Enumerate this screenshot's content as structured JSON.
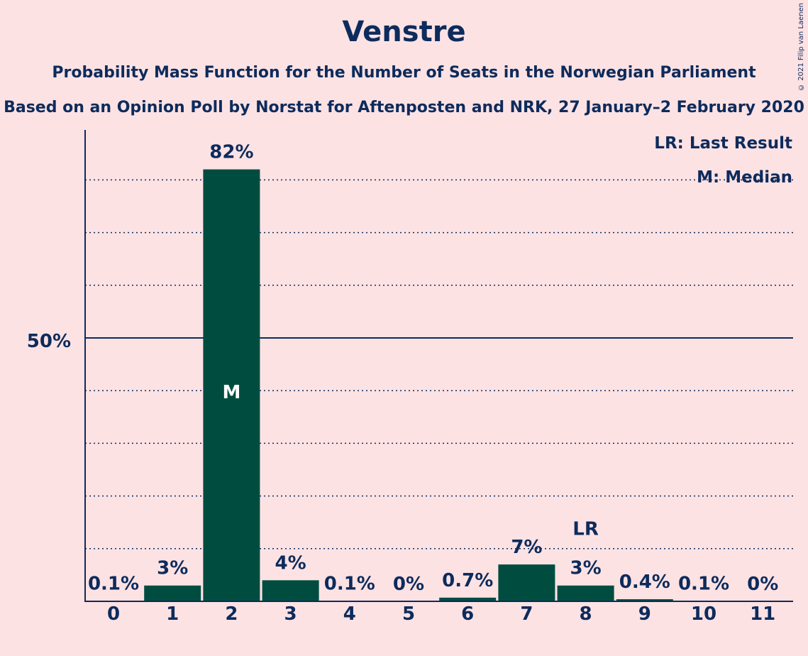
{
  "chart_data": {
    "type": "bar",
    "title": "Venstre",
    "subtitle_lines": [
      "Probability Mass Function for the Number of Seats in the Norwegian Parliament",
      "Based on an Opinion Poll by Norstat for Aftenposten and NRK, 27 January–2 February 2020"
    ],
    "categories": [
      "0",
      "1",
      "2",
      "3",
      "4",
      "5",
      "6",
      "7",
      "8",
      "9",
      "10",
      "11"
    ],
    "values": [
      0.1,
      3,
      82,
      4,
      0.1,
      0,
      0.7,
      7,
      3,
      0.4,
      0.1,
      0
    ],
    "value_labels": [
      "0.1%",
      "3%",
      "82%",
      "4%",
      "0.1%",
      "0%",
      "0.7%",
      "7%",
      "3%",
      "0.4%",
      "0.1%",
      "0%"
    ],
    "ylim": [
      0,
      90
    ],
    "y_tick_label": "50%",
    "y_tick_value": 50,
    "dotted_gridlines": [
      10,
      20,
      30,
      40,
      60,
      70,
      80
    ],
    "median_index": 2,
    "median_mark": "M",
    "last_result_index": 8,
    "last_result_mark": "LR",
    "legend": [
      "LR: Last Result",
      "M: Median"
    ],
    "legend_position": "top-right",
    "bar_color": "#004d40",
    "text_color": "#0d2b5c",
    "background_color": "#fde2e4"
  },
  "copyright": "© 2021 Filip van Laenen"
}
